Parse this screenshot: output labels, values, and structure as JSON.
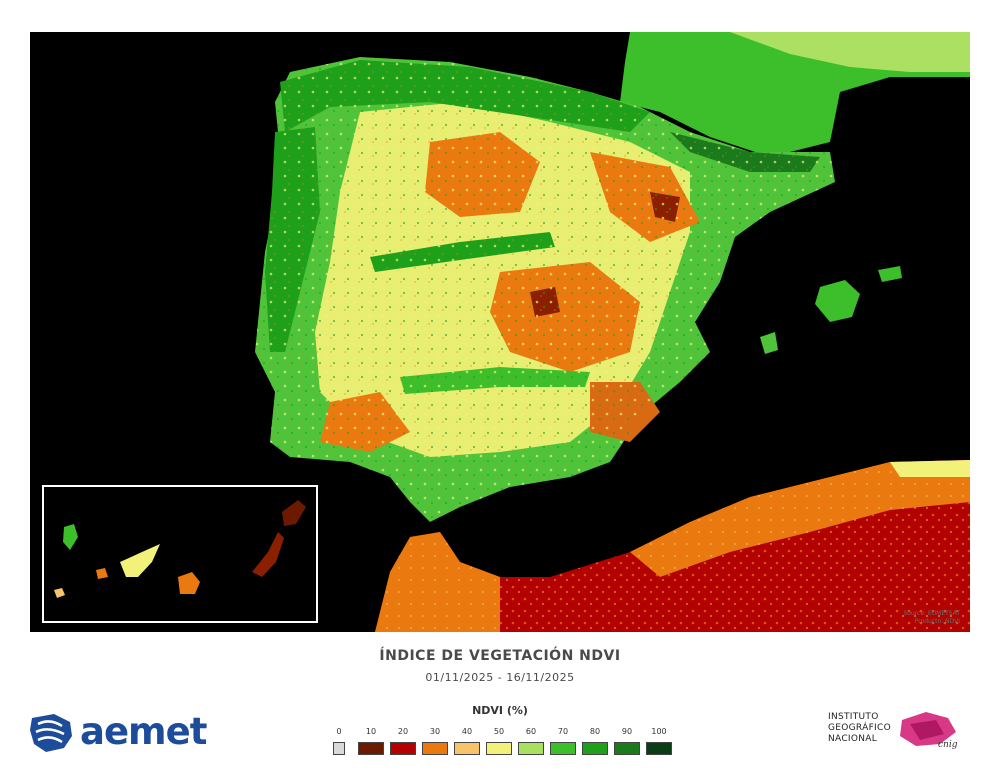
{
  "map": {
    "title": "ÍNDICE DE VEGETACIÓN NDVI",
    "period": "01/11/2025 - 16/11/2025",
    "credit_line1": "Source: EUMETSAT",
    "credit_line2": "Producto: NDVI"
  },
  "legend": {
    "title": "NDVI (%)",
    "ticks": [
      "0",
      "10",
      "20",
      "30",
      "40",
      "50",
      "60",
      "70",
      "80",
      "90",
      "100"
    ],
    "colors": [
      "#d9d9d9",
      "#6b1a00",
      "#b30000",
      "#ea7a10",
      "#f7c36b",
      "#f2f27a",
      "#a8e060",
      "#3cbf2a",
      "#1ea01a",
      "#1b7a1b",
      "#0a3d16"
    ]
  },
  "logos": {
    "aemet": "aemet",
    "ign_line1": "INSTITUTO",
    "ign_line2": "GEOGRÁFICO",
    "ign_line3": "NACIONAL",
    "ign_mark": "cnig"
  }
}
